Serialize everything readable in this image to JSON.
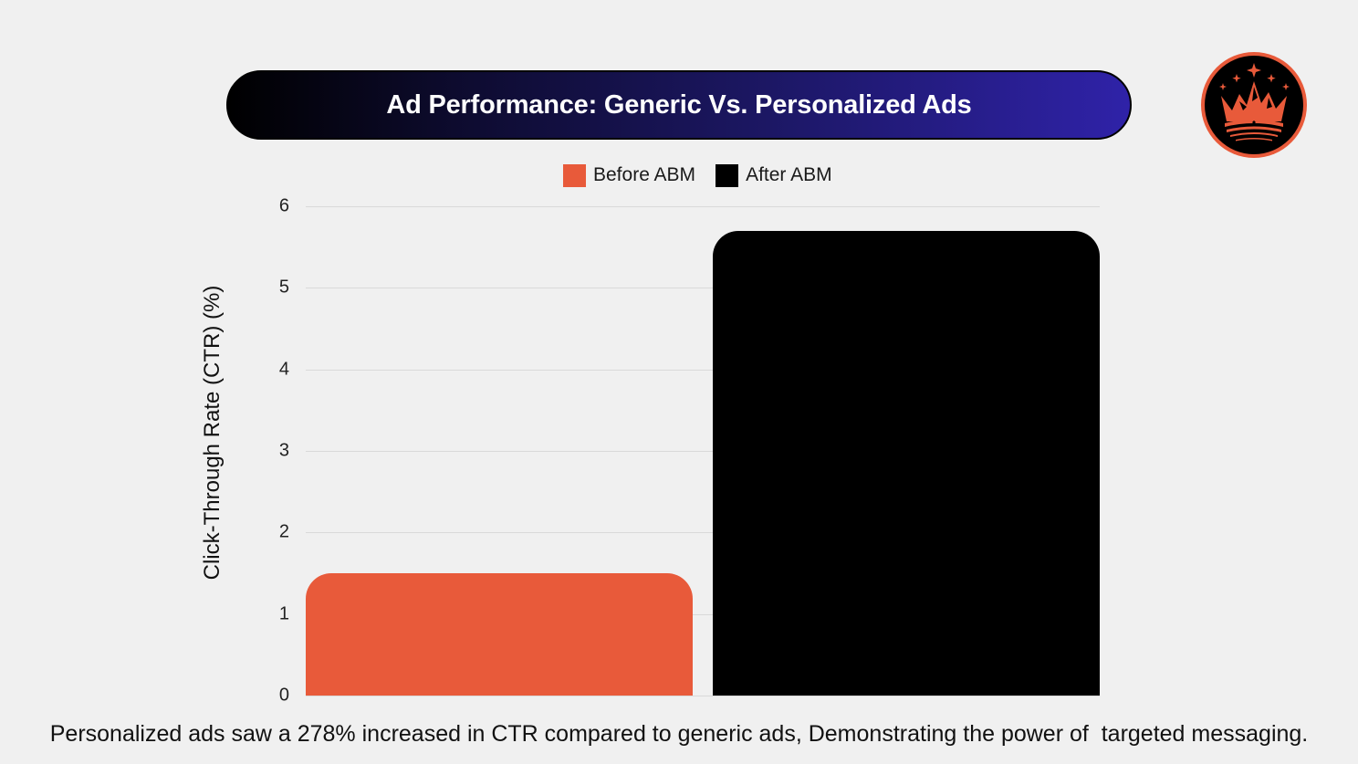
{
  "header": {
    "title": "Ad Performance: Generic Vs. Personalized Ads"
  },
  "logo": {
    "icon": "crown-mountain-logo-icon",
    "colors": {
      "ring": "#e85a3a",
      "background": "#000000",
      "mark": "#e85a3a"
    }
  },
  "legend": {
    "items": [
      {
        "label": "Before ABM",
        "color": "#e85a3a"
      },
      {
        "label": "After ABM",
        "color": "#000000"
      }
    ]
  },
  "axis": {
    "y_title": "Click-Through Rate (CTR) (%)",
    "y_ticks": [
      "0",
      "1",
      "2",
      "3",
      "4",
      "5",
      "6"
    ]
  },
  "caption": "Personalized ads saw a 278% increased in CTR compared to generic ads, Demonstrating the power of  targeted messaging.",
  "chart_data": {
    "type": "bar",
    "title": "Ad Performance: Generic Vs. Personalized Ads",
    "xlabel": "",
    "ylabel": "Click-Through Rate (CTR) (%)",
    "categories": [
      "Before ABM",
      "After ABM"
    ],
    "series": [
      {
        "name": "Before ABM",
        "values": [
          1.5
        ],
        "color": "#e85a3a"
      },
      {
        "name": "After ABM",
        "values": [
          5.7
        ],
        "color": "#000000"
      }
    ],
    "values": [
      1.5,
      5.7
    ],
    "ylim": [
      0,
      6
    ],
    "y_ticks": [
      0,
      1,
      2,
      3,
      4,
      5,
      6
    ],
    "grid": true,
    "legend_position": "top",
    "annotation": "Personalized ads saw a 278% increased in CTR compared to generic ads, Demonstrating the power of  targeted messaging."
  }
}
